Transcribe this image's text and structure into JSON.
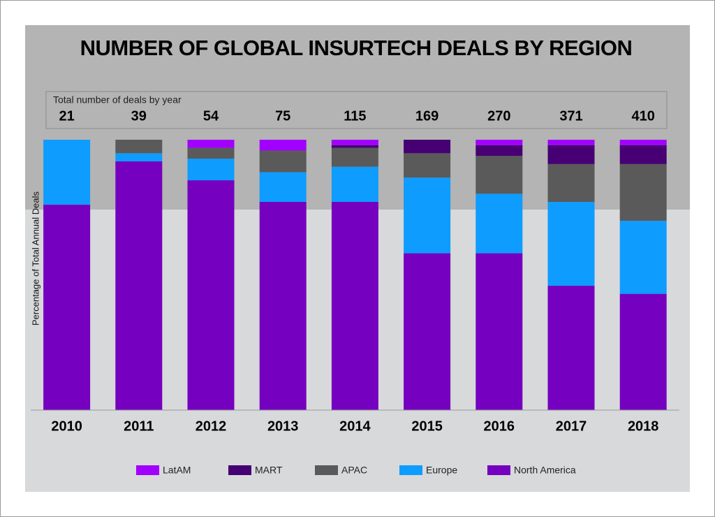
{
  "chart_data": {
    "type": "stacked_bar",
    "title": "NUMBER OF GLOBAL INSURTECH DEALS BY REGION",
    "y_label": "Percentage of Total Annual Deals",
    "totals": {
      "label": "Total number of deals by year",
      "values": [
        21,
        39,
        54,
        75,
        115,
        169,
        270,
        371,
        410
      ]
    },
    "categories": [
      "2010",
      "2011",
      "2012",
      "2013",
      "2014",
      "2015",
      "2016",
      "2017",
      "2018"
    ],
    "ylim": [
      0,
      100
    ],
    "series": [
      {
        "name": "LatAM",
        "color": "#a100ff",
        "values": [
          0,
          0,
          3,
          4,
          2,
          0,
          2,
          2,
          2
        ]
      },
      {
        "name": "MART",
        "color": "#460073",
        "values": [
          0,
          0,
          0,
          0,
          1,
          5,
          4,
          7,
          7
        ]
      },
      {
        "name": "APAC",
        "color": "#5a5a5a",
        "values": [
          0,
          5,
          4,
          8,
          7,
          9,
          14,
          14,
          21
        ]
      },
      {
        "name": "Europe",
        "color": "#0e9cff",
        "values": [
          24,
          3,
          8,
          11,
          13,
          28,
          22,
          31,
          27
        ]
      },
      {
        "name": "North America",
        "color": "#7500c0",
        "values": [
          76,
          92,
          85,
          77,
          77,
          58,
          58,
          46,
          43
        ]
      }
    ]
  }
}
